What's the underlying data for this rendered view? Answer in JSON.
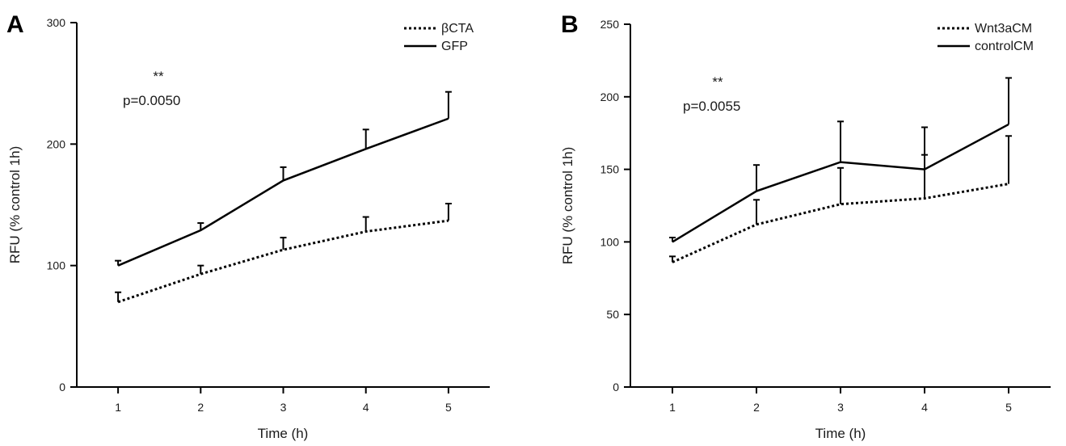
{
  "chart_data": [
    {
      "type": "line",
      "panel_label": "A",
      "xlabel": "Time (h)",
      "ylabel": "RFU (% control 1h)",
      "x": [
        1,
        2,
        3,
        4,
        5
      ],
      "xlim": [
        0.5,
        5.5
      ],
      "ylim": [
        0,
        300
      ],
      "yticks": [
        0,
        100,
        200,
        300
      ],
      "grid": false,
      "legend_position": "top-right",
      "series": [
        {
          "name": "βCTA",
          "style": "dotted",
          "values": [
            70,
            93,
            113,
            128,
            137
          ],
          "errors": [
            8,
            7,
            10,
            12,
            14
          ]
        },
        {
          "name": "GFP",
          "style": "solid",
          "values": [
            100,
            129,
            170,
            196,
            221
          ],
          "errors": [
            4,
            6,
            11,
            16,
            22
          ]
        }
      ],
      "annotations": [
        {
          "text": "**",
          "role": "stars"
        },
        {
          "text": "p=0.0050",
          "role": "pvalue"
        }
      ]
    },
    {
      "type": "line",
      "panel_label": "B",
      "xlabel": "Time (h)",
      "ylabel": "RFU (% control 1h)",
      "x": [
        1,
        2,
        3,
        4,
        5
      ],
      "xlim": [
        0.5,
        5.5
      ],
      "ylim": [
        0,
        250
      ],
      "yticks": [
        0,
        50,
        100,
        150,
        200,
        250
      ],
      "grid": false,
      "legend_position": "top-right",
      "series": [
        {
          "name": "Wnt3aCM",
          "style": "dotted",
          "values": [
            86,
            112,
            126,
            130,
            140
          ],
          "errors": [
            4,
            17,
            25,
            30,
            33
          ]
        },
        {
          "name": "controlCM",
          "style": "solid",
          "values": [
            100,
            135,
            155,
            150,
            181
          ],
          "errors": [
            3,
            18,
            28,
            29,
            32
          ]
        }
      ],
      "annotations": [
        {
          "text": "**",
          "role": "stars"
        },
        {
          "text": "p=0.0055",
          "role": "pvalue"
        }
      ]
    }
  ]
}
